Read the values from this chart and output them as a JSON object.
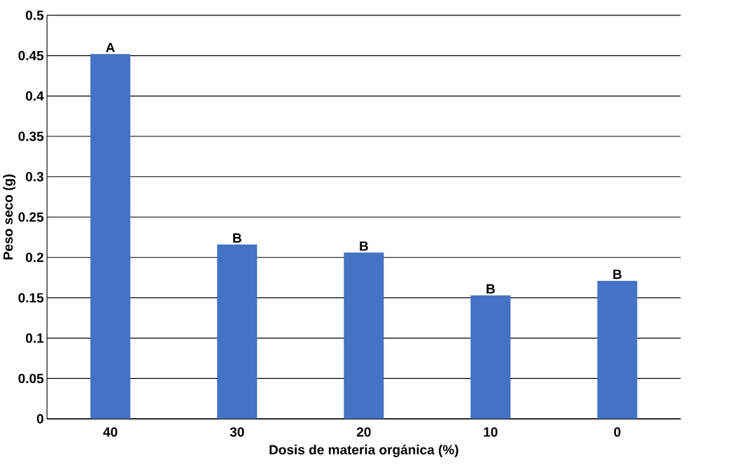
{
  "chart_data": {
    "type": "bar",
    "xlabel": "Dosis de materia orgánica (%)",
    "ylabel": "Peso seco (g)",
    "categories": [
      "40",
      "30",
      "20",
      "10",
      "0"
    ],
    "values": [
      0.452,
      0.216,
      0.206,
      0.153,
      0.171
    ],
    "color": "#4472c4",
    "ylim": [
      0,
      0.5
    ],
    "yticks": [
      0,
      0.05,
      0.1,
      0.15,
      0.2,
      0.25,
      0.3,
      0.35,
      0.4,
      0.45,
      0.5
    ],
    "grid": "y",
    "annotations": [
      {
        "text": "A",
        "x": "40",
        "y": 0.452
      },
      {
        "text": "B",
        "x": "30",
        "y": 0.216
      },
      {
        "text": "B",
        "x": "20",
        "y": 0.206
      },
      {
        "text": "B",
        "x": "10",
        "y": 0.153
      },
      {
        "text": "B",
        "x": "0",
        "y": 0.171
      }
    ]
  }
}
